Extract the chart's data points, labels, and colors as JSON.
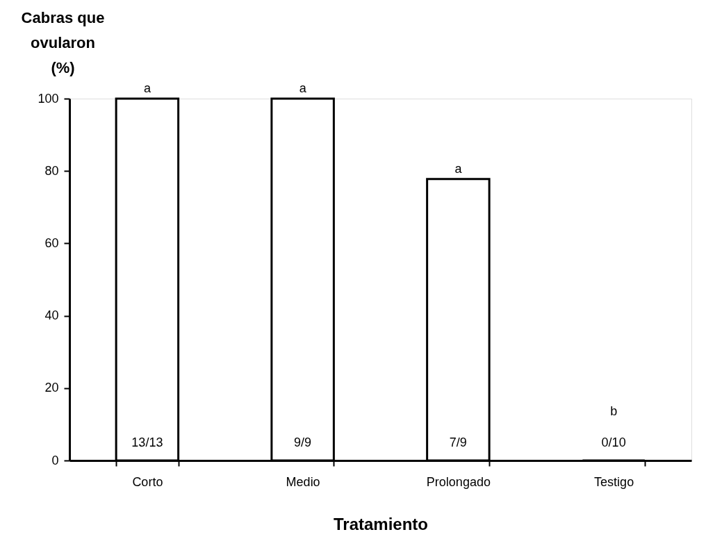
{
  "chart_data": {
    "type": "bar",
    "xlabel": "Tratamiento",
    "ylabel": "Cabras que ovularon (%)",
    "categories": [
      "Corto",
      "Medio",
      "Prolongado",
      "Testigo"
    ],
    "series": [
      {
        "color": "#ffffff",
        "values": [
          100,
          100,
          77.8,
          0
        ],
        "value_labels": [
          "13/13",
          "9/9",
          "7/9",
          "0/10"
        ]
      }
    ],
    "ylim": [
      0,
      100
    ],
    "yticks": [
      0,
      20,
      40,
      60,
      80,
      100
    ],
    "grid": false,
    "legend": false,
    "annotations": [
      {
        "text": "a",
        "x": "Corto",
        "y": 100
      },
      {
        "text": "a",
        "x": "Medio",
        "y": 100
      },
      {
        "text": "a",
        "x": "Prolongado",
        "y": 77.8
      },
      "b"
    ]
  }
}
